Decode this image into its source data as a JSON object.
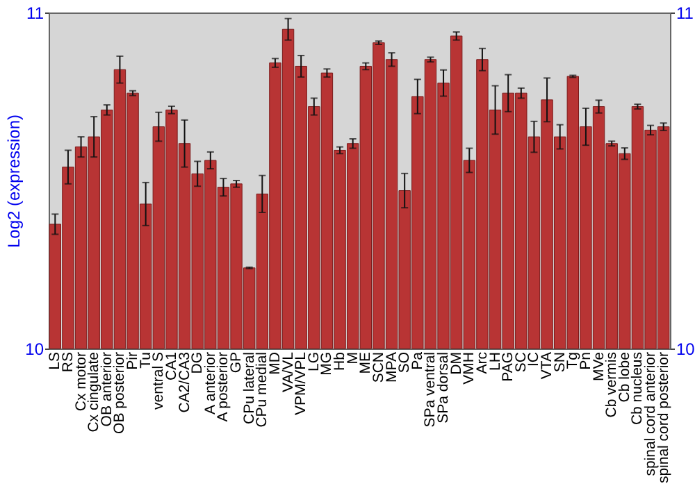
{
  "chart_data": {
    "type": "bar",
    "ylabel": "Log2 (expression)",
    "categories": [
      "LS",
      "RS",
      "Cx motor",
      "Cx cingulate",
      "OB anterior",
      "OB posterior",
      "Pir",
      "Tu",
      "ventral S",
      "CA1",
      "CA2/CA3",
      "DG",
      "A anterior",
      "A posterior",
      "GP",
      "CPu lateral",
      "CPu medial",
      "MD",
      "VA/VL",
      "VPM/VPL",
      "LG",
      "MG",
      "Hb",
      "M",
      "ME",
      "SCN",
      "MPA",
      "SO",
      "Pa",
      "SPa ventral",
      "SPa dorsal",
      "DM",
      "VMH",
      "Arc",
      "LH",
      "PAG",
      "SC",
      "IC",
      "VTA",
      "SN",
      "Tg",
      "Pn",
      "MVe",
      "Cb vermis",
      "Cb lobe",
      "Cb nucleus",
      "spinal cord anterior",
      "spinal cord posterior"
    ],
    "values": [
      10.37,
      10.54,
      10.6,
      10.63,
      10.71,
      10.83,
      10.76,
      10.43,
      10.66,
      10.71,
      10.61,
      10.52,
      10.56,
      10.48,
      10.49,
      10.24,
      10.46,
      10.85,
      10.95,
      10.84,
      10.72,
      10.82,
      10.59,
      10.61,
      10.84,
      10.91,
      10.86,
      10.47,
      10.75,
      10.86,
      10.79,
      10.93,
      10.56,
      10.86,
      10.71,
      10.76,
      10.76,
      10.63,
      10.74,
      10.63,
      10.81,
      10.66,
      10.72,
      10.61,
      10.58,
      10.72,
      10.65,
      10.66
    ],
    "errors": [
      0.03,
      0.05,
      0.03,
      0.06,
      0.015,
      0.04,
      0.007,
      0.064,
      0.043,
      0.011,
      0.07,
      0.037,
      0.025,
      0.026,
      0.01,
      0.002,
      0.055,
      0.013,
      0.032,
      0.032,
      0.025,
      0.012,
      0.01,
      0.014,
      0.01,
      0.005,
      0.02,
      0.051,
      0.051,
      0.007,
      0.039,
      0.012,
      0.036,
      0.033,
      0.072,
      0.055,
      0.015,
      0.046,
      0.065,
      0.036,
      0.003,
      0.055,
      0.019,
      0.007,
      0.017,
      0.007,
      0.014,
      0.011
    ],
    "color": "#b83434",
    "ylim": [
      10,
      11
    ],
    "yticks": [
      10,
      11
    ],
    "y2lim": [
      10,
      11
    ],
    "y2ticks": [
      10,
      11
    ],
    "grid": false
  }
}
